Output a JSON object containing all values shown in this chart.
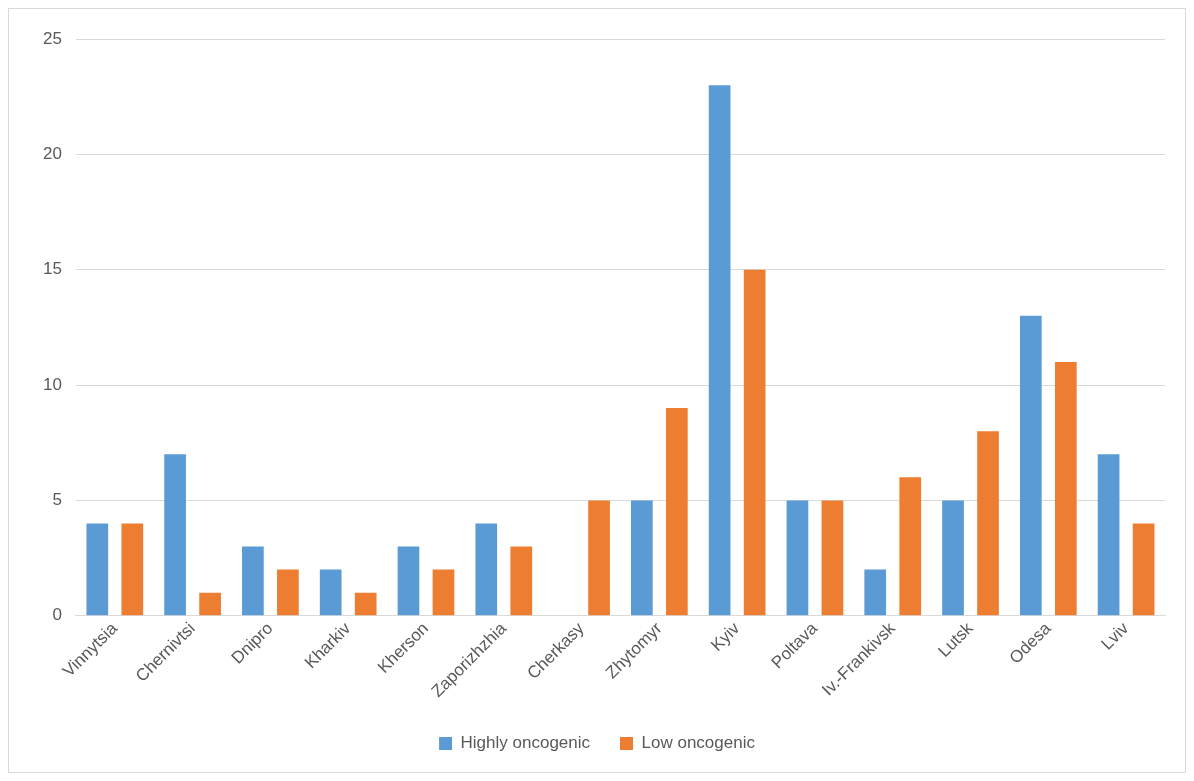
{
  "chart_data": {
    "type": "bar",
    "categories": [
      "Vinnytsia",
      "Chernivtsi",
      "Dnipro",
      "Kharkiv",
      "Kherson",
      "Zaporizhzhia",
      "Cherkasy",
      "Zhytomyr",
      "Kyiv",
      "Poltava",
      "Iv.-Frankivsk",
      "Lutsk",
      "Odesa",
      "Lviv"
    ],
    "series": [
      {
        "name": "Highly oncogenic",
        "color": "#5b9bd5",
        "values": [
          4,
          7,
          3,
          2,
          3,
          4,
          0,
          5,
          23,
          5,
          2,
          5,
          13,
          7
        ]
      },
      {
        "name": "Low oncogenic",
        "color": "#ed7d31",
        "values": [
          4,
          1,
          2,
          1,
          2,
          3,
          5,
          9,
          15,
          5,
          6,
          8,
          11,
          4
        ]
      }
    ],
    "ylim": [
      0,
      25
    ],
    "yticks": [
      0,
      5,
      10,
      15,
      20,
      25
    ],
    "grid": "y",
    "legend": "bottom"
  }
}
